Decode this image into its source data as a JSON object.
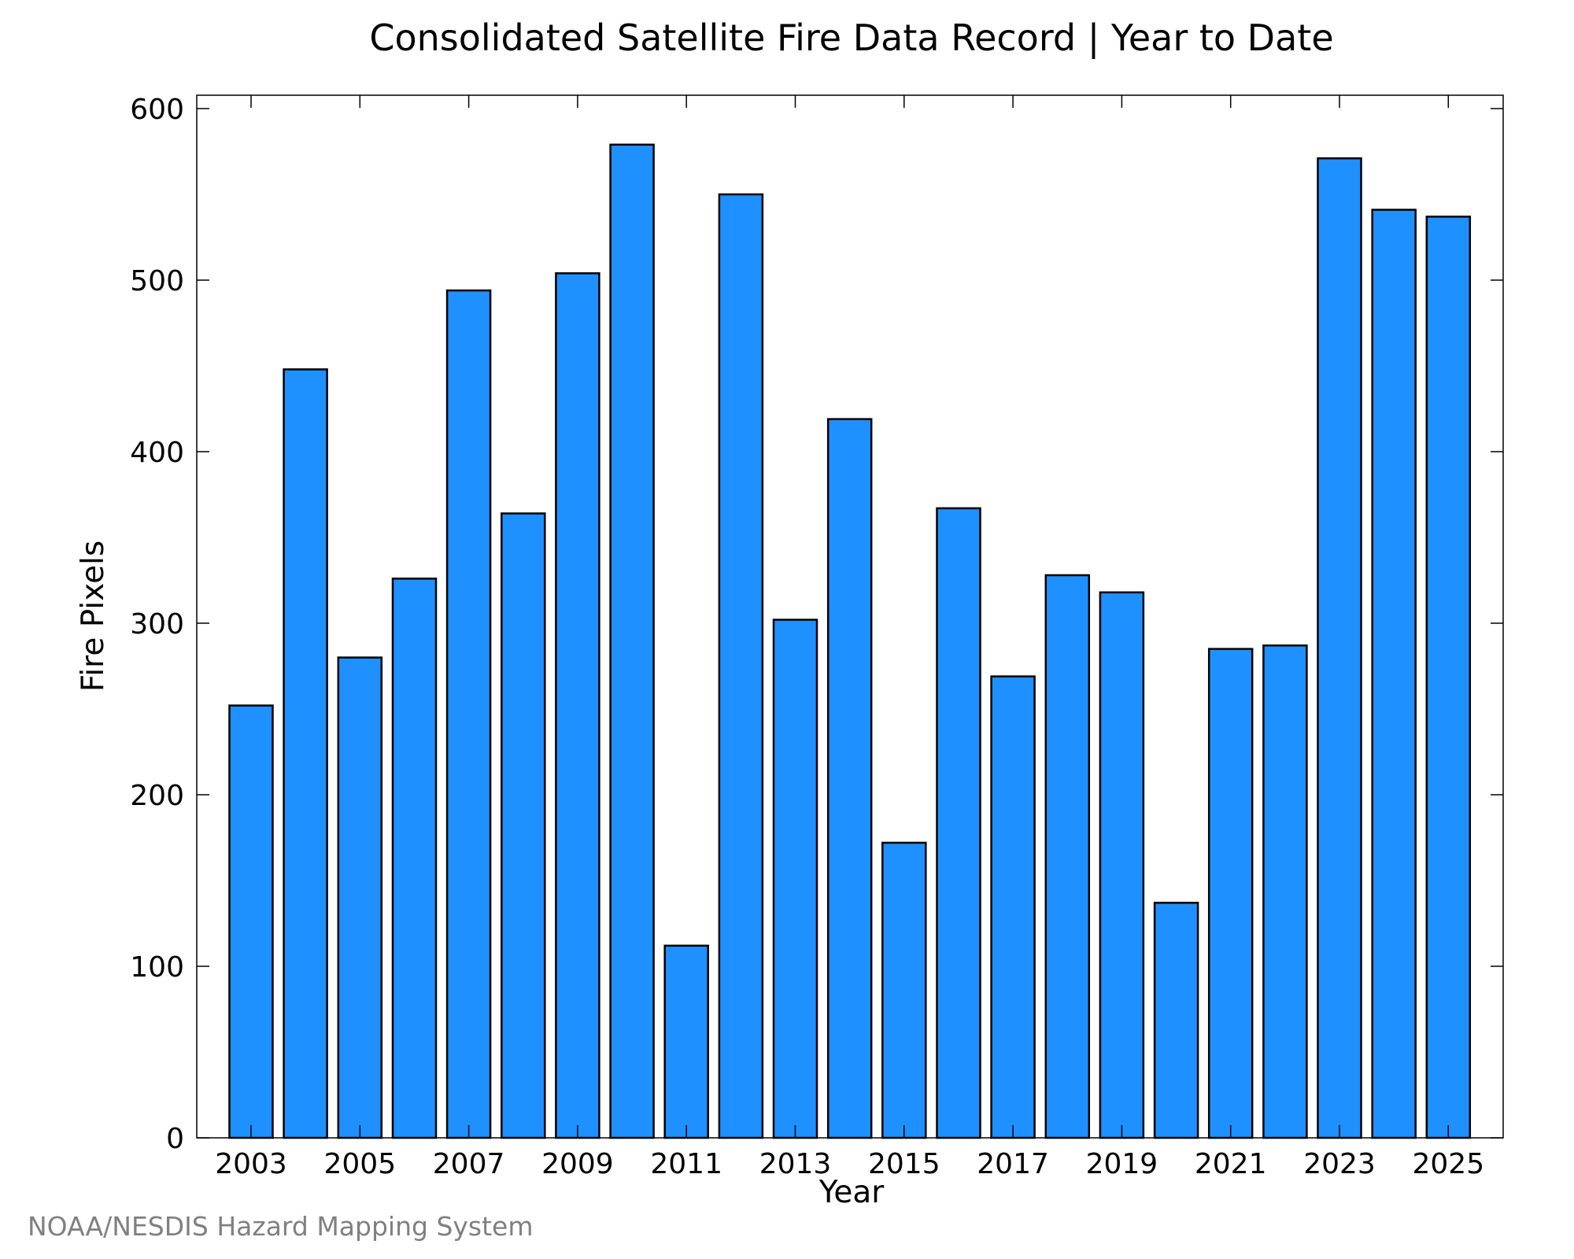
{
  "colors": {
    "bar_fill": "#1E90FF",
    "bar_stroke": "#000000",
    "axis": "#000000",
    "credit": "#808080",
    "background": "#FFFFFF"
  },
  "chart_data": {
    "type": "bar",
    "title": "Consolidated Satellite Fire Data Record | Year to Date",
    "xlabel": "Year",
    "ylabel": "Fire Pixels",
    "ylim": [
      0,
      600
    ],
    "yticks": [
      0,
      100,
      200,
      300,
      400,
      500,
      600
    ],
    "xticks": [
      "2003",
      "2005",
      "2007",
      "2009",
      "2011",
      "2013",
      "2015",
      "2017",
      "2019",
      "2021",
      "2023",
      "2025"
    ],
    "categories": [
      2003,
      2004,
      2005,
      2006,
      2007,
      2008,
      2009,
      2010,
      2011,
      2012,
      2013,
      2014,
      2015,
      2016,
      2017,
      2018,
      2019,
      2020,
      2021,
      2022,
      2023,
      2024,
      2025
    ],
    "values": [
      252,
      448,
      280,
      326,
      494,
      364,
      504,
      579,
      112,
      550,
      302,
      419,
      172,
      367,
      269,
      328,
      318,
      137,
      285,
      287,
      571,
      541,
      537
    ],
    "grid": false,
    "legend": "none"
  },
  "credit": "NOAA/NESDIS Hazard Mapping System"
}
